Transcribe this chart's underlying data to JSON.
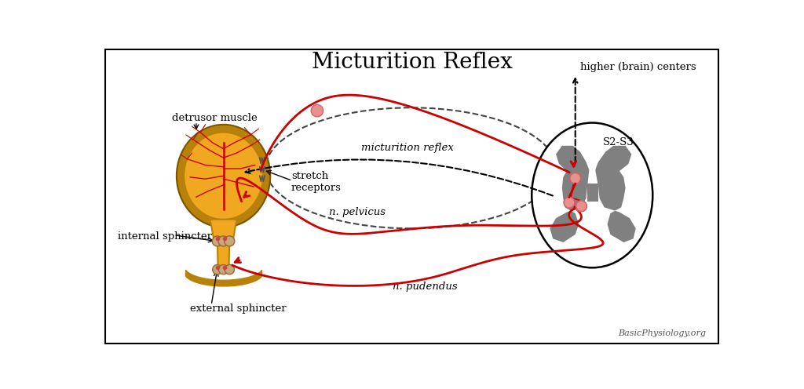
{
  "title": "Micturition Reflex",
  "title_fontsize": 20,
  "background_color": "#ffffff",
  "border_color": "#000000",
  "bladder_outer_color": "#b8820a",
  "bladder_fill_color": "#f0a820",
  "nerve_red_color": "#cc0000",
  "sphincter_color": "#c8a878",
  "spinal_gray_color": "#808080",
  "neuron_pink": "#e89090",
  "dashed_color": "#444444",
  "annotations": {
    "detrusor_muscle": "detrusor muscle",
    "stretch_receptors": "stretch\nreceptors",
    "internal_sphincter": "internal sphincter",
    "external_sphincter": "external sphincter",
    "n_pelvicus": "n. pelvicus",
    "n_pudendus": "n. pudendus",
    "micturition_reflex": "micturition reflex",
    "higher_brain": "higher (brain) centers",
    "s2s3": "S2-S3",
    "watermark": "BasicPhysiology.org"
  }
}
